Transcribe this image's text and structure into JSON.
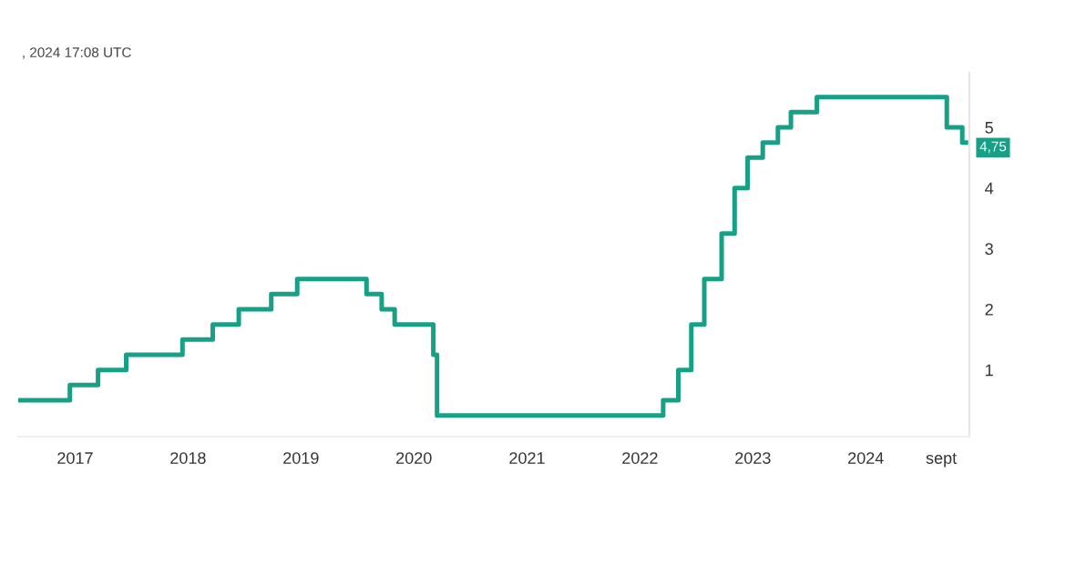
{
  "chart_data": {
    "type": "step",
    "title": ", 2024 17:08 UTC",
    "x": [
      "2016-07-01",
      "2016-12-15",
      "2017-03-16",
      "2017-06-15",
      "2017-12-14",
      "2018-03-22",
      "2018-06-14",
      "2018-09-27",
      "2018-12-20",
      "2019-08-01",
      "2019-09-19",
      "2019-10-31",
      "2020-03-04",
      "2020-03-16",
      "2022-03-17",
      "2022-05-05",
      "2022-06-16",
      "2022-07-28",
      "2022-09-22",
      "2022-11-03",
      "2022-12-15",
      "2023-02-02",
      "2023-03-23",
      "2023-05-04",
      "2023-07-27",
      "2024-09-19",
      "2024-11-08",
      "2024-11-20"
    ],
    "series": [
      {
        "color": "#17a085",
        "values": [
          0.5,
          0.75,
          1.0,
          1.25,
          1.5,
          1.75,
          2.0,
          2.25,
          2.5,
          2.25,
          2.0,
          1.75,
          1.25,
          0.25,
          0.5,
          1.0,
          1.75,
          2.5,
          3.25,
          4.0,
          4.5,
          4.75,
          5.0,
          5.25,
          5.5,
          5.0,
          4.75,
          4.75
        ]
      }
    ],
    "annotations": [
      "4,75"
    ],
    "xlim": [
      "2016-07-01",
      "2024-12-01"
    ],
    "xticks": [
      {
        "value": "2017-01-01",
        "label": "2017"
      },
      {
        "value": "2018-01-01",
        "label": "2018"
      },
      {
        "value": "2019-01-01",
        "label": "2019"
      },
      {
        "value": "2020-01-01",
        "label": "2020"
      },
      {
        "value": "2021-01-01",
        "label": "2021"
      },
      {
        "value": "2022-01-01",
        "label": "2022"
      },
      {
        "value": "2023-01-01",
        "label": "2023"
      },
      {
        "value": "2024-01-01",
        "label": "2024"
      },
      {
        "value": "2024-09-01",
        "label": "sept"
      }
    ],
    "ylim": [
      -0.1,
      5.9
    ],
    "yticks": [
      1,
      2,
      3,
      4,
      5
    ],
    "grid": false,
    "legend": false
  }
}
